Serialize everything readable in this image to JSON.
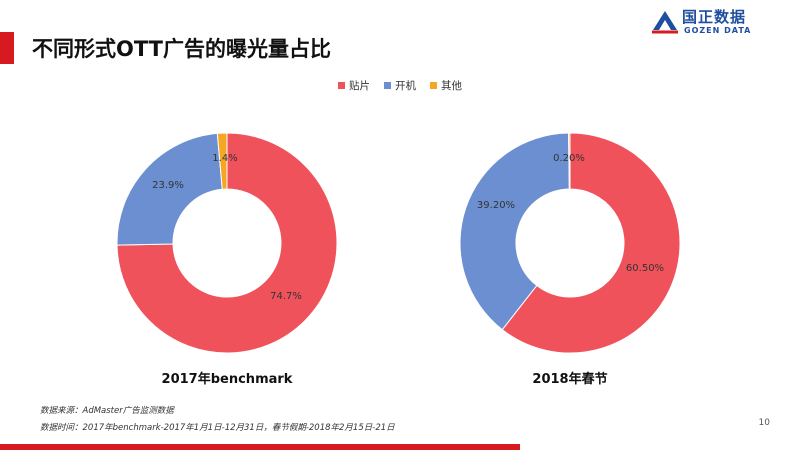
{
  "title": "不同形式OTT广告的曝光量占比",
  "logo": {
    "cn": "国正数据",
    "en": "GOZEN DATA"
  },
  "legend": [
    {
      "label": "贴片",
      "color": "#f0525c"
    },
    {
      "label": "开机",
      "color": "#6b8fd1"
    },
    {
      "label": "其他",
      "color": "#f5a623"
    }
  ],
  "chart_data": [
    {
      "type": "pie",
      "title": "2017年benchmark",
      "categories": [
        "贴片",
        "开机",
        "其他"
      ],
      "values": [
        74.7,
        23.9,
        1.4
      ],
      "labels": [
        "74.7%",
        "23.9%",
        "1.4%"
      ],
      "colors": [
        "#f0525c",
        "#6b8fd1",
        "#f5a623"
      ]
    },
    {
      "type": "pie",
      "title": "2018年春节",
      "categories": [
        "贴片",
        "开机",
        "其他"
      ],
      "values": [
        60.5,
        39.2,
        0.2
      ],
      "labels": [
        "60.50%",
        "39.20%",
        "0.20%"
      ],
      "colors": [
        "#f0525c",
        "#6b8fd1",
        "#f5a623"
      ]
    }
  ],
  "footnotes": {
    "source": "数据来源：AdMaster广告监测数据",
    "period": "数据时间：2017年benchmark-2017年1月1日-12月31日，春节假期-2018年2月15日-21日"
  },
  "page_number": "10"
}
